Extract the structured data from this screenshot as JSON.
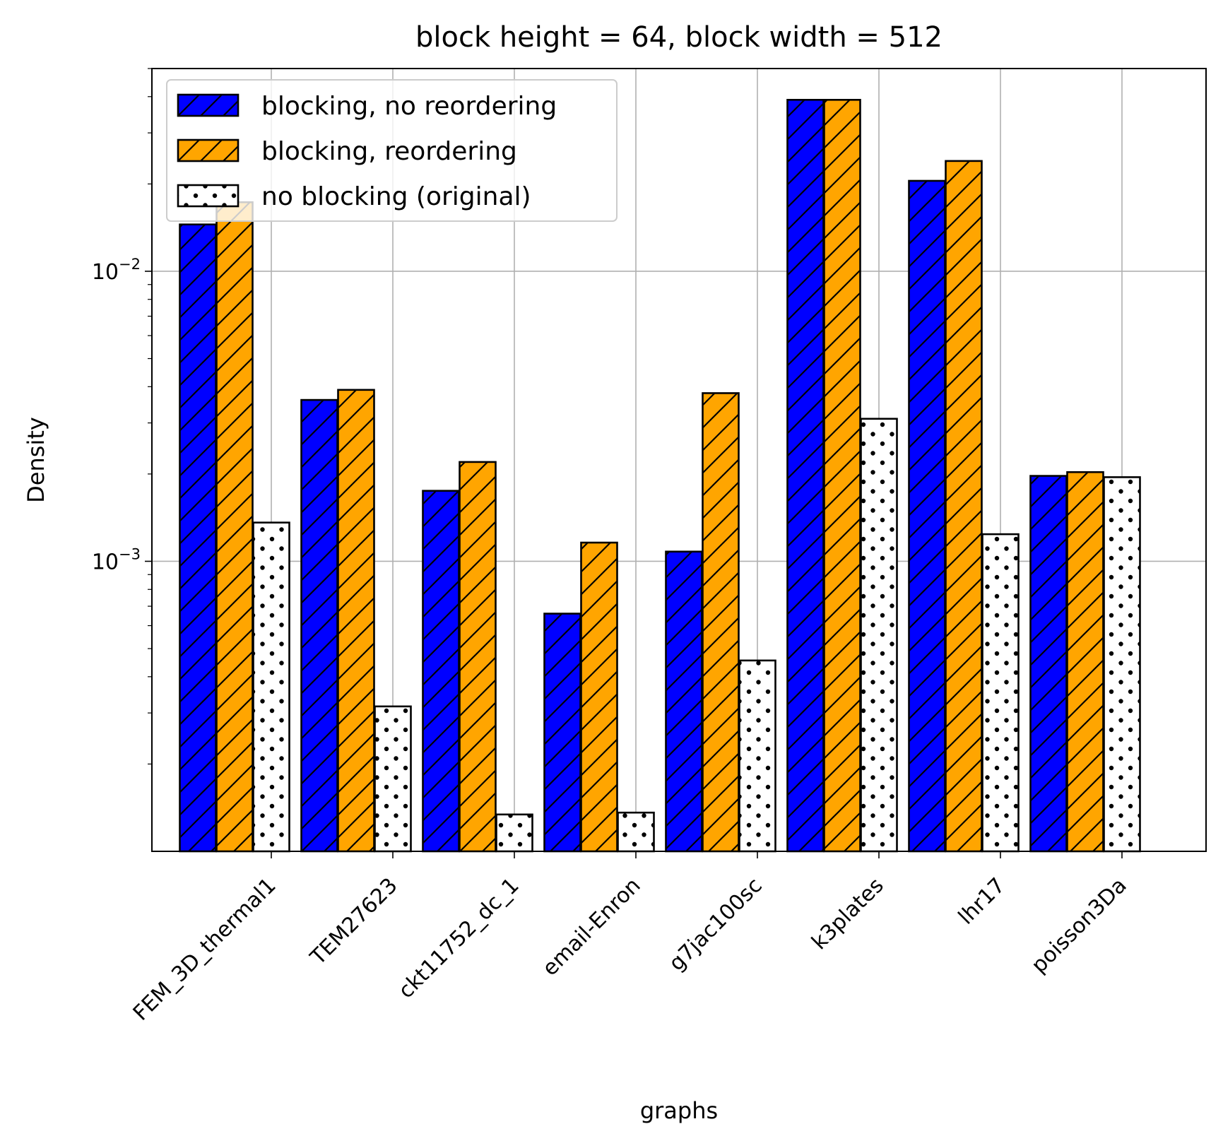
{
  "chart_data": {
    "type": "bar",
    "title": "block height = 64, block width = 512",
    "xlabel": "graphs",
    "ylabel": "Density",
    "yscale": "log",
    "ylim": [
      0.0001,
      0.05
    ],
    "yticks": [
      {
        "value": 0.001,
        "base": "10",
        "exp": "−3"
      },
      {
        "value": 0.01,
        "base": "10",
        "exp": "−2"
      }
    ],
    "grid": true,
    "legend_position": "top-left",
    "categories": [
      "FEM_3D_thermal1",
      "TEM27623",
      "ckt11752_dc_1",
      "email-Enron",
      "g7jac100sc",
      "k3plates",
      "lhr17",
      "poisson3Da"
    ],
    "series": [
      {
        "name": "blocking, no reordering",
        "color": "#0000ff",
        "pattern": "hatch-diagonal",
        "values": [
          0.0145,
          0.0036,
          0.00175,
          0.00066,
          0.00108,
          0.039,
          0.0205,
          0.00197
        ]
      },
      {
        "name": "blocking, reordering",
        "color": "#ffa500",
        "pattern": "hatch-diagonal",
        "values": [
          0.0173,
          0.0039,
          0.0022,
          0.00116,
          0.0038,
          0.039,
          0.024,
          0.00203
        ]
      },
      {
        "name": "no blocking (original)",
        "color": "#ffffff",
        "pattern": "dots",
        "values": [
          0.00136,
          0.000316,
          0.000134,
          0.000136,
          0.000455,
          0.0031,
          0.00124,
          0.00195
        ]
      }
    ]
  }
}
